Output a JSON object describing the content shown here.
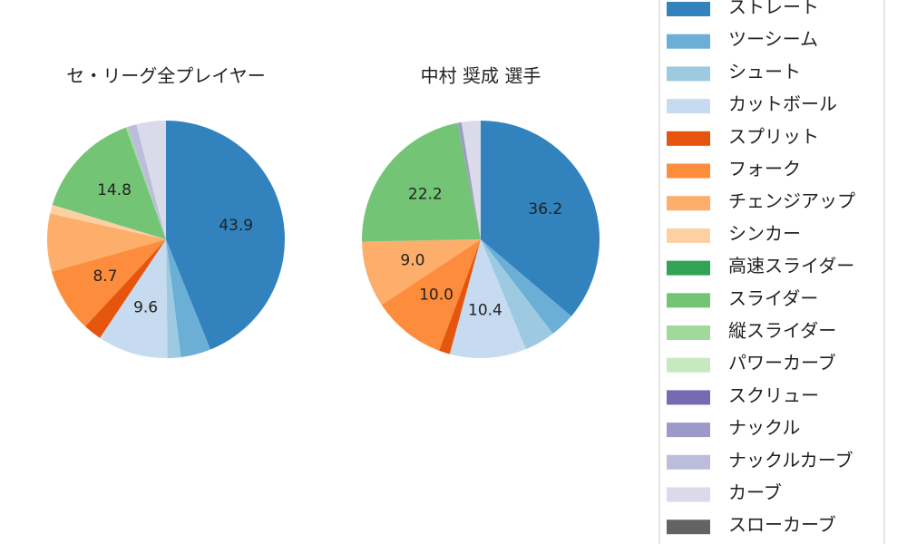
{
  "chart_data": [
    {
      "type": "pie",
      "title": "セ・リーグ全プレイヤー",
      "categories": [
        "ストレート",
        "ツーシーム",
        "シュート",
        "カットボール",
        "スプリット",
        "フォーク",
        "チェンジアップ",
        "シンカー",
        "高速スライダー",
        "スライダー",
        "縦スライダー",
        "パワーカーブ",
        "スクリュー",
        "ナックル",
        "ナックルカーブ",
        "カーブ",
        "スローカーブ"
      ],
      "values": [
        43.9,
        4.1,
        1.8,
        9.6,
        2.5,
        8.7,
        7.9,
        1.2,
        0,
        14.8,
        0.3,
        0,
        0,
        0,
        1.2,
        4.0,
        0
      ],
      "value_labels": [
        "43.9",
        null,
        null,
        "9.6",
        null,
        "8.7",
        null,
        null,
        null,
        "14.8",
        null,
        null,
        null,
        null,
        null,
        null,
        null
      ],
      "colors": [
        "#3182bd",
        "#6baed6",
        "#9ecae1",
        "#c6dbef",
        "#e6550d",
        "#fd8d3c",
        "#fdae6b",
        "#fdd0a2",
        "#31a354",
        "#74c476",
        "#a1d99b",
        "#c7e9c0",
        "#756bb1",
        "#9e9ac8",
        "#bcbddc",
        "#dadaeb",
        "#636363"
      ]
    },
    {
      "type": "pie",
      "title": "中村 奨成  選手",
      "categories": [
        "ストレート",
        "ツーシーム",
        "シュート",
        "カットボール",
        "スプリット",
        "フォーク",
        "チェンジアップ",
        "シンカー",
        "高速スライダー",
        "スライダー",
        "縦スライダー",
        "パワーカーブ",
        "スクリュー",
        "ナックル",
        "ナックルカーブ",
        "カーブ",
        "スローカーブ"
      ],
      "values": [
        36.2,
        3.4,
        4.2,
        10.4,
        1.5,
        10.0,
        9.0,
        0,
        0,
        22.2,
        0,
        0,
        0,
        0.5,
        0,
        2.6,
        0
      ],
      "value_labels": [
        "36.2",
        null,
        null,
        "10.4",
        null,
        "10.0",
        "9.0",
        null,
        null,
        "22.2",
        null,
        null,
        null,
        null,
        null,
        null,
        null
      ],
      "colors": [
        "#3182bd",
        "#6baed6",
        "#9ecae1",
        "#c6dbef",
        "#e6550d",
        "#fd8d3c",
        "#fdae6b",
        "#fdd0a2",
        "#31a354",
        "#74c476",
        "#a1d99b",
        "#c7e9c0",
        "#756bb1",
        "#9e9ac8",
        "#bcbddc",
        "#dadaeb",
        "#636363"
      ]
    }
  ]
}
